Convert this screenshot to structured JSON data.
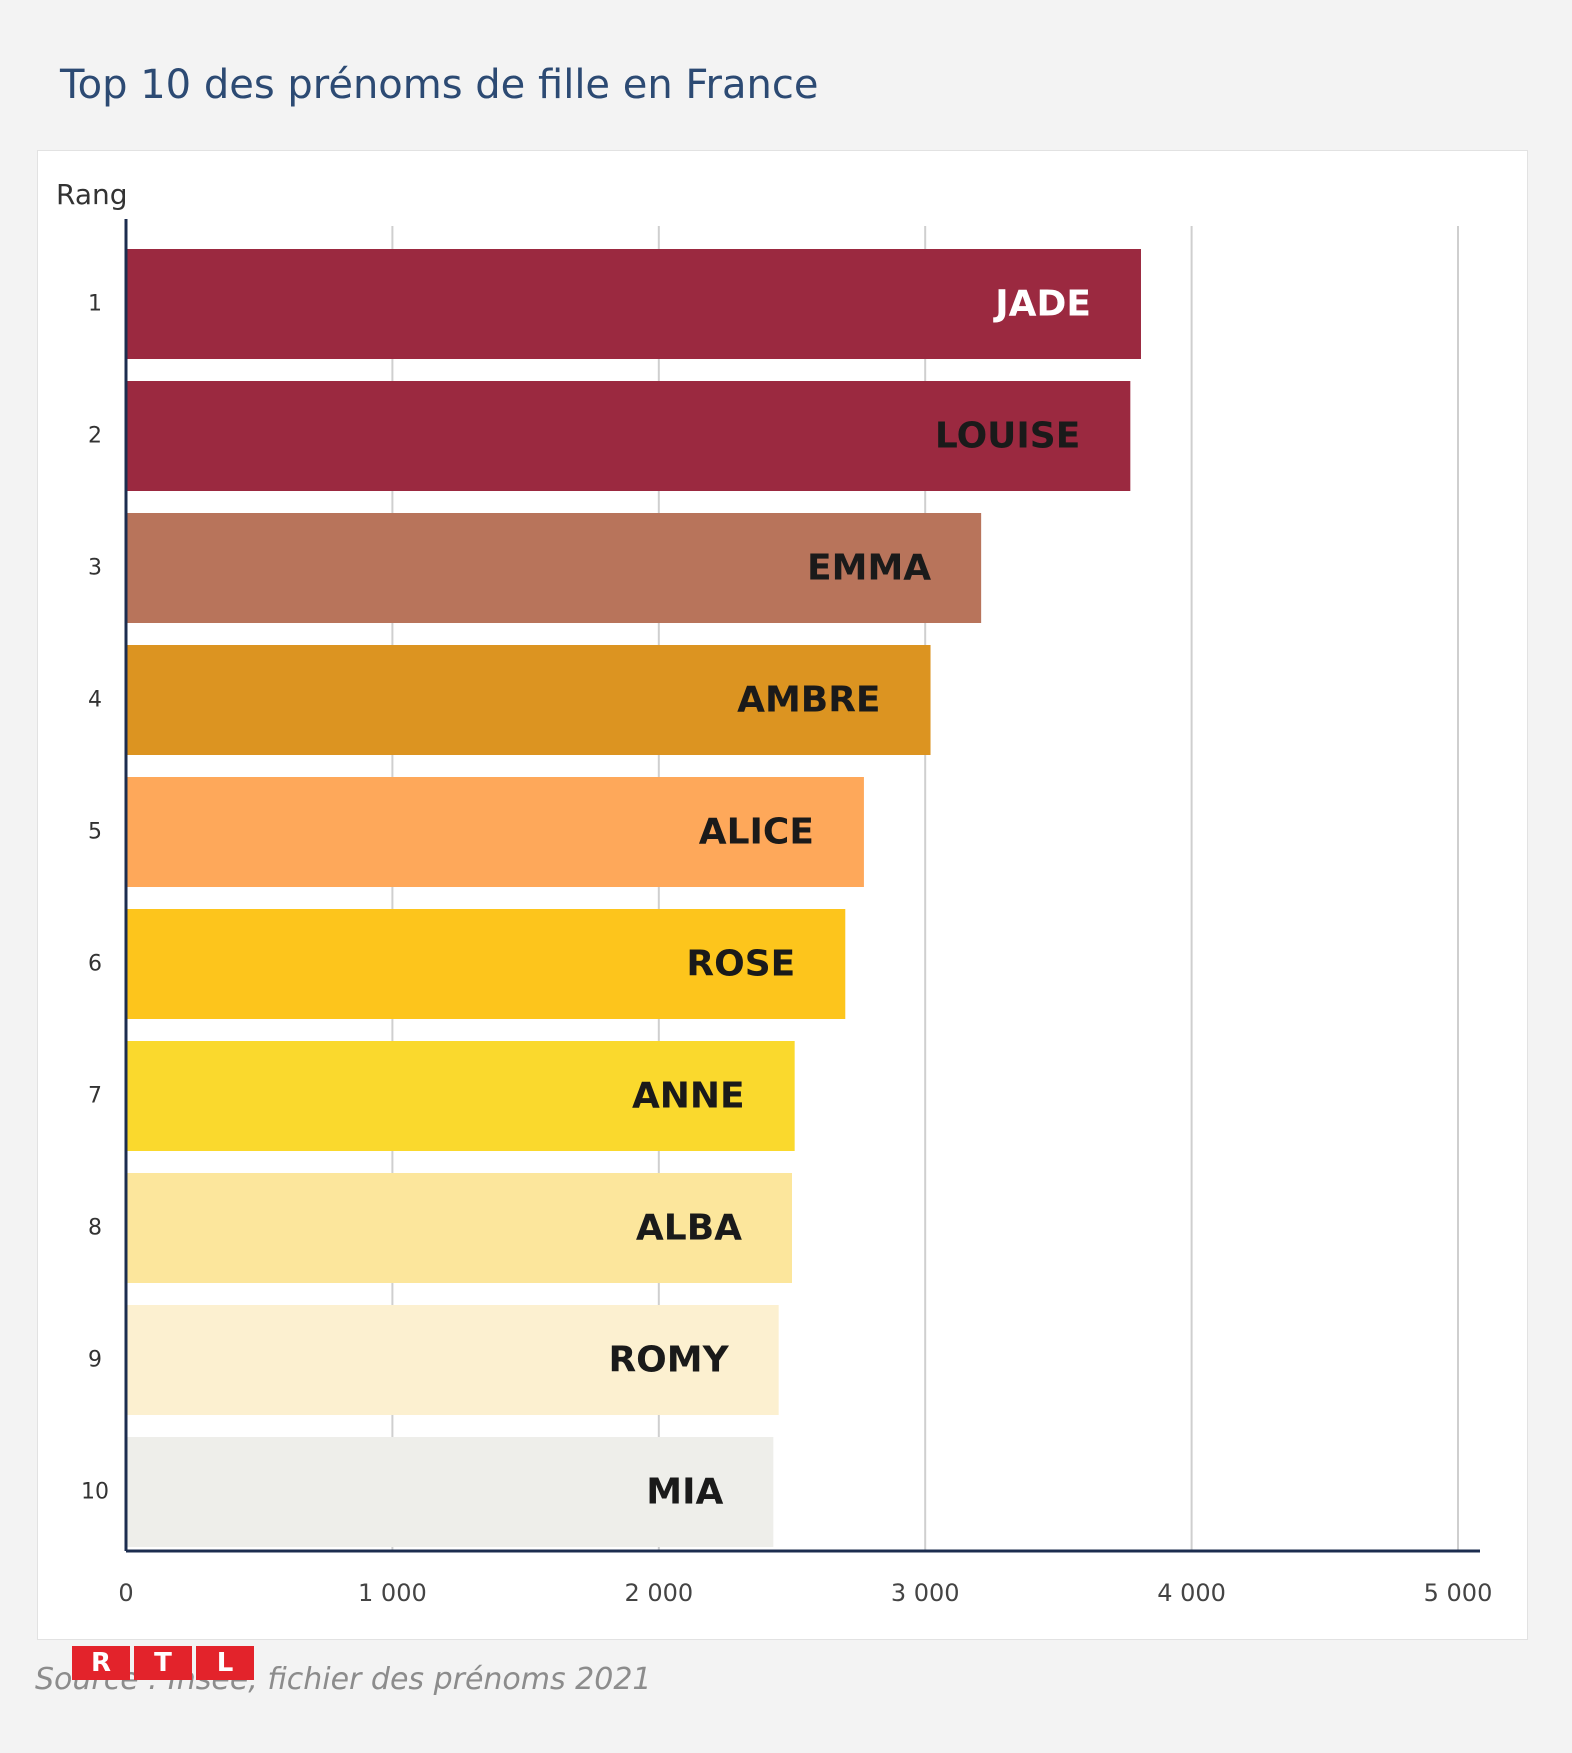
{
  "title": "Top 10 des prénoms de fille en France",
  "source": "Source : Insee, fichier des prénoms 2021",
  "logo": {
    "letters": [
      "R",
      "T",
      "L"
    ],
    "color": "#e3232b"
  },
  "chart_data": {
    "type": "bar",
    "orientation": "horizontal",
    "ylabel": "Rang",
    "xlabel": "",
    "xlim": [
      0,
      5000
    ],
    "x_ticks": [
      0,
      1000,
      2000,
      3000,
      4000,
      5000
    ],
    "x_tick_labels": [
      "0",
      "1 000",
      "2 000",
      "3 000",
      "4 000",
      "5 000"
    ],
    "grid": true,
    "categories": [
      "1",
      "2",
      "3",
      "4",
      "5",
      "6",
      "7",
      "8",
      "9",
      "10"
    ],
    "bar_labels": [
      "JADE",
      "LOUISE",
      "EMMA",
      "AMBRE",
      "ALICE",
      "ROSE",
      "ANNE",
      "ALBA",
      "ROMY",
      "MIA"
    ],
    "values": [
      3810,
      3770,
      3210,
      3020,
      2770,
      2700,
      2510,
      2500,
      2450,
      2430
    ],
    "colors": [
      "#9b2940",
      "#9b2940",
      "#b8745b",
      "#dc9421",
      "#fea85a",
      "#fdc51c",
      "#fad92d",
      "#fce69c",
      "#fcf0d0",
      "#eeeeea"
    ],
    "label_colors": [
      "#ffffff",
      "#1a1a1a",
      "#1a1a1a",
      "#1a1a1a",
      "#1a1a1a",
      "#1a1a1a",
      "#1a1a1a",
      "#1a1a1a",
      "#1a1a1a",
      "#1a1a1a"
    ]
  }
}
